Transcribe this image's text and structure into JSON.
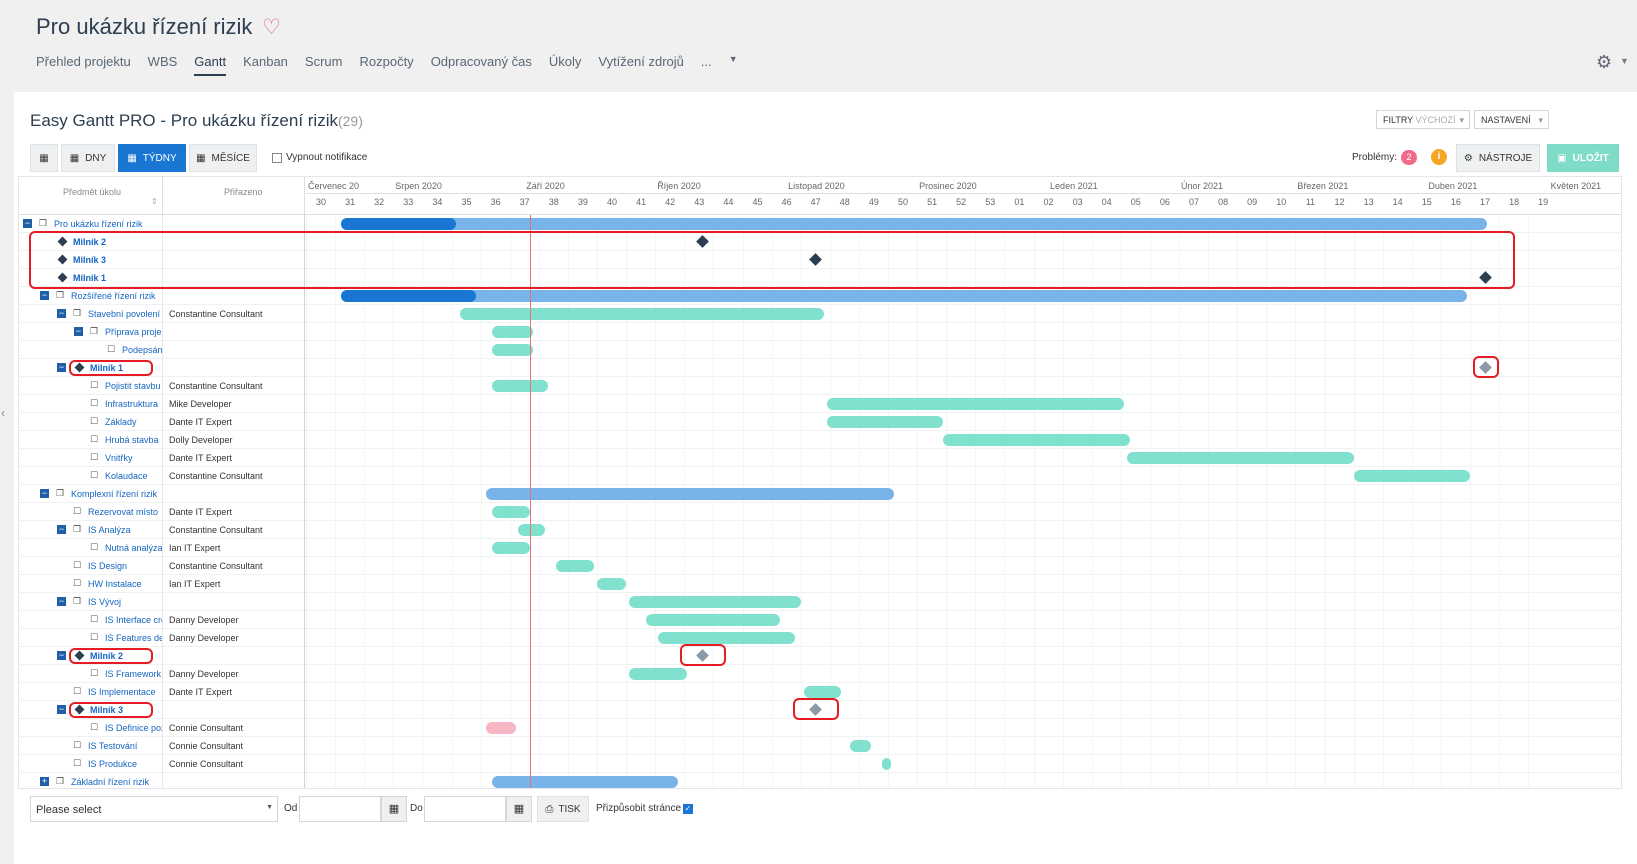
{
  "project": {
    "title": "Pro ukázku řízení rizik",
    "favorite_icon": "heart-icon"
  },
  "tabs": [
    {
      "label": "Přehled projektu"
    },
    {
      "label": "WBS"
    },
    {
      "label": "Gantt",
      "active": true
    },
    {
      "label": "Kanban"
    },
    {
      "label": "Scrum"
    },
    {
      "label": "Rozpočty"
    },
    {
      "label": "Odpracovaný čas"
    },
    {
      "label": "Úkoly"
    },
    {
      "label": "Vytížení zdrojů"
    },
    {
      "label": "..."
    }
  ],
  "gantt": {
    "title": "Easy Gantt PRO - Pro ukázku řízení rizik",
    "count": "(29)"
  },
  "filters": {
    "label": "FILTRY",
    "value": "VÝCHOZÍ"
  },
  "settings_label": "NASTAVENÍ",
  "toolbar": {
    "days": "DNY",
    "weeks": "TÝDNY",
    "months": "MĚSÍCE",
    "notif": "Vypnout notifikace",
    "problems_label": "Problémy:",
    "problems_count": "2",
    "info": "i",
    "tools": "NÁSTROJE",
    "save": "ULOŽIT"
  },
  "columns": {
    "subject": "Předmět úkolu",
    "assigned": "Přiřazeno"
  },
  "months": [
    {
      "label": "Červenec 20",
      "week": 0
    },
    {
      "label": "Srpen 2020",
      "week": 3
    },
    {
      "label": "Září 2020",
      "week": 7.5
    },
    {
      "label": "Říjen 2020",
      "week": 12
    },
    {
      "label": "Listopad 2020",
      "week": 16.5
    },
    {
      "label": "Prosinec 2020",
      "week": 21
    },
    {
      "label": "Leden 2021",
      "week": 25.5
    },
    {
      "label": "Únor 2021",
      "week": 30
    },
    {
      "label": "Březen 2021",
      "week": 34
    },
    {
      "label": "Duben 2021",
      "week": 38.5
    },
    {
      "label": "Květen 2021",
      "week": 42.7
    }
  ],
  "weeks": [
    "30",
    "31",
    "32",
    "33",
    "34",
    "35",
    "36",
    "37",
    "38",
    "39",
    "40",
    "41",
    "42",
    "43",
    "44",
    "45",
    "46",
    "47",
    "48",
    "49",
    "50",
    "51",
    "52",
    "53",
    "01",
    "02",
    "03",
    "04",
    "05",
    "06",
    "07",
    "08",
    "09",
    "10",
    "11",
    "12",
    "13",
    "14",
    "15",
    "16",
    "17",
    "18",
    "19"
  ],
  "today_week": 7.7,
  "rows": [
    {
      "subject": "Pro ukázku řízení rizik",
      "assigned": "",
      "level": 0,
      "kind": "project",
      "toggle": "-",
      "bar": {
        "color": "blue",
        "start": 1.2,
        "end": 40.6,
        "progress": 0.1
      }
    },
    {
      "subject": "Milník 2",
      "assigned": "",
      "level": 1,
      "kind": "milestone",
      "bold": true,
      "milestone_week": 13.6
    },
    {
      "subject": "Milník 3",
      "assigned": "",
      "level": 1,
      "kind": "milestone",
      "bold": true,
      "milestone_week": 17.5
    },
    {
      "subject": "Milník 1",
      "assigned": "",
      "level": 1,
      "kind": "milestone",
      "bold": true,
      "milestone_week": 40.5
    },
    {
      "subject": "Rozšířené řízení rizik",
      "assigned": "",
      "level": 1,
      "kind": "project",
      "toggle": "-",
      "bar": {
        "color": "blue",
        "start": 1.2,
        "end": 39.9,
        "progress": 0.12
      }
    },
    {
      "subject": "Stavební povolení",
      "assigned": "Constantine Consultant",
      "level": 2,
      "kind": "parent",
      "toggle": "-",
      "bar": {
        "color": "green",
        "start": 5.3,
        "end": 17.8
      }
    },
    {
      "subject": "Příprava projektu",
      "assigned": "",
      "level": 3,
      "kind": "parent",
      "toggle": "-",
      "bar": {
        "color": "green",
        "start": 6.4,
        "end": 7.8
      }
    },
    {
      "subject": "Podepsání smlouvy",
      "assigned": "",
      "level": 4,
      "kind": "task",
      "bar": {
        "color": "green",
        "start": 6.4,
        "end": 7.8
      }
    },
    {
      "subject": "Milník 1",
      "assigned": "",
      "level": 2,
      "kind": "milestone",
      "bold": true,
      "toggle": "-",
      "milestone_week": 40.5,
      "milestone_grey": true
    },
    {
      "subject": "Pojistit stavbu",
      "assigned": "Constantine Consultant",
      "level": 3,
      "kind": "task",
      "bar": {
        "color": "green",
        "start": 6.4,
        "end": 8.3
      }
    },
    {
      "subject": "Infrastruktura",
      "assigned": "Mike Developer",
      "level": 3,
      "kind": "task",
      "bar": {
        "color": "green",
        "start": 17.9,
        "end": 28.1
      }
    },
    {
      "subject": "Základy",
      "assigned": "Dante IT Expert",
      "level": 3,
      "kind": "task",
      "bar": {
        "color": "green",
        "start": 17.9,
        "end": 21.9
      }
    },
    {
      "subject": "Hrubá stavba",
      "assigned": "Dolly Developer",
      "level": 3,
      "kind": "task",
      "bar": {
        "color": "green",
        "start": 21.9,
        "end": 28.3
      }
    },
    {
      "subject": "Vnitřky",
      "assigned": "Dante IT Expert",
      "level": 3,
      "kind": "task",
      "bar": {
        "color": "green",
        "start": 28.2,
        "end": 36.0
      }
    },
    {
      "subject": "Kolaudace",
      "assigned": "Constantine Consultant",
      "level": 3,
      "kind": "task",
      "bar": {
        "color": "green",
        "start": 36.0,
        "end": 40.0
      }
    },
    {
      "subject": "Komplexní řízení rizik",
      "assigned": "",
      "level": 1,
      "kind": "project",
      "toggle": "-",
      "bar": {
        "color": "blue",
        "start": 6.2,
        "end": 20.2
      }
    },
    {
      "subject": "Rezervovat místo",
      "assigned": "Dante IT Expert",
      "level": 2,
      "kind": "task",
      "bar": {
        "color": "green",
        "start": 6.4,
        "end": 7.7
      }
    },
    {
      "subject": "IS Analýza",
      "assigned": "Constantine Consultant",
      "level": 2,
      "kind": "parent",
      "toggle": "-",
      "bar": {
        "color": "green",
        "start": 7.3,
        "end": 8.2
      }
    },
    {
      "subject": "Nutná analýza",
      "assigned": "Ian IT Expert",
      "level": 3,
      "kind": "task",
      "bar": {
        "color": "green",
        "start": 6.4,
        "end": 7.7
      }
    },
    {
      "subject": "IS Design",
      "assigned": "Constantine Consultant",
      "level": 2,
      "kind": "task",
      "bar": {
        "color": "green",
        "start": 8.6,
        "end": 9.9
      }
    },
    {
      "subject": "HW Instalace",
      "assigned": "Ian IT Expert",
      "level": 2,
      "kind": "task",
      "bar": {
        "color": "green",
        "start": 10.0,
        "end": 11.0
      }
    },
    {
      "subject": "IS Vývoj",
      "assigned": "",
      "level": 2,
      "kind": "parent",
      "toggle": "-",
      "bar": {
        "color": "green",
        "start": 11.1,
        "end": 17.0
      }
    },
    {
      "subject": "IS Interface creation",
      "assigned": "Danny Developer",
      "level": 3,
      "kind": "task",
      "bar": {
        "color": "green",
        "start": 11.7,
        "end": 16.3
      }
    },
    {
      "subject": "IS Features development",
      "assigned": "Danny Developer",
      "level": 3,
      "kind": "task",
      "bar": {
        "color": "green",
        "start": 12.1,
        "end": 16.8
      }
    },
    {
      "subject": "Milník 2",
      "assigned": "",
      "level": 2,
      "kind": "milestone",
      "bold": true,
      "toggle": "-",
      "milestone_week": 13.6,
      "milestone_grey": true
    },
    {
      "subject": "IS Framework",
      "assigned": "Danny Developer",
      "level": 3,
      "kind": "task",
      "bar": {
        "color": "green",
        "start": 11.1,
        "end": 13.1
      }
    },
    {
      "subject": "IS Implementace",
      "assigned": "Dante IT Expert",
      "level": 2,
      "kind": "task",
      "bar": {
        "color": "green",
        "start": 17.1,
        "end": 18.4
      }
    },
    {
      "subject": "Milník 3",
      "assigned": "",
      "level": 2,
      "kind": "milestone",
      "bold": true,
      "toggle": "-",
      "milestone_week": 17.5,
      "milestone_grey": true
    },
    {
      "subject": "IS Definice požadavků",
      "assigned": "Connie Consultant",
      "level": 3,
      "kind": "task",
      "bar": {
        "color": "pink",
        "start": 6.2,
        "end": 7.2
      }
    },
    {
      "subject": "IS Testování",
      "assigned": "Connie Consultant",
      "level": 2,
      "kind": "task",
      "bar": {
        "color": "green",
        "start": 18.7,
        "end": 19.4
      }
    },
    {
      "subject": "IS Produkce",
      "assigned": "Connie Consultant",
      "level": 2,
      "kind": "task",
      "bar": {
        "color": "green",
        "start": 19.8,
        "end": 20.1
      }
    },
    {
      "subject": "Základní řízení rizik",
      "assigned": "",
      "level": 1,
      "kind": "project",
      "toggle": "+",
      "bar": {
        "color": "blue",
        "start": 6.4,
        "end": 12.8
      }
    }
  ],
  "bottom": {
    "select": "Please select",
    "from": "Od",
    "to": "Do",
    "print": "TISK",
    "fit": "Přizpůsobit stránce"
  }
}
